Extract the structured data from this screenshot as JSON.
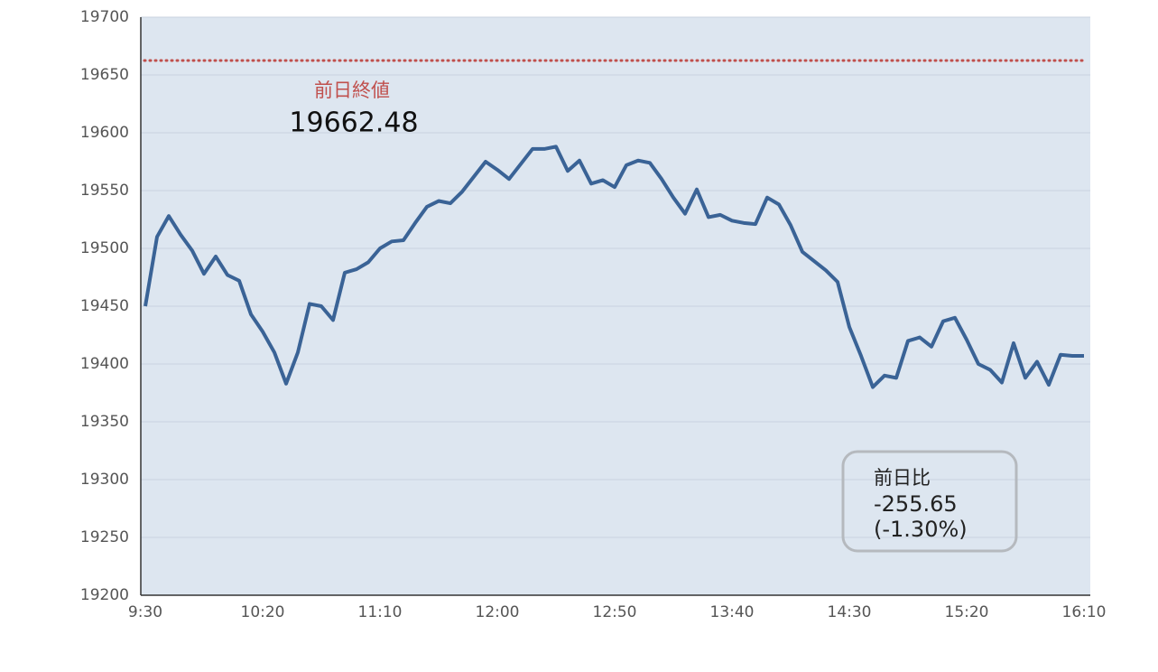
{
  "chart_data": {
    "type": "line",
    "categories": [
      "9:30",
      null,
      null,
      null,
      null,
      null,
      null,
      null,
      null,
      null,
      "10:20",
      null,
      null,
      null,
      null,
      null,
      null,
      null,
      null,
      null,
      "11:10",
      null,
      null,
      null,
      null,
      null,
      null,
      null,
      null,
      null,
      "12:00",
      null,
      null,
      null,
      null,
      null,
      null,
      null,
      null,
      null,
      "12:50",
      null,
      null,
      null,
      null,
      null,
      null,
      null,
      null,
      null,
      "13:40",
      null,
      null,
      null,
      null,
      null,
      null,
      null,
      null,
      null,
      "14:30",
      null,
      null,
      null,
      null,
      null,
      null,
      null,
      null,
      null,
      "15:20",
      null,
      null,
      null,
      null,
      null,
      null,
      null,
      null,
      null,
      "16:10"
    ],
    "series": [
      {
        "color": "#3a6396",
        "values": [
          19450,
          19510,
          19528,
          19512,
          19498,
          19478,
          19493,
          19477,
          19472,
          19443,
          19428,
          19410,
          19383,
          19410,
          19452,
          19450,
          19438,
          19479,
          19482,
          19488,
          19500,
          19506,
          19507,
          19522,
          19536,
          19541,
          19539,
          19549,
          19562,
          19575,
          19568,
          19560,
          19573,
          19586,
          19586,
          19588,
          19567,
          19576,
          19556,
          19559,
          19553,
          19572,
          19576,
          19574,
          19560,
          19544,
          19530,
          19551,
          19527,
          19529,
          19524,
          19522,
          19521,
          19544,
          19538,
          19520,
          19497,
          19489,
          19481,
          19471,
          19432,
          19407,
          19380,
          19390,
          19388,
          19420,
          19423,
          19415,
          19437,
          19440,
          19421,
          19400,
          19395,
          19384,
          19418,
          19388,
          19402,
          19382,
          19408,
          19407,
          19407
        ]
      }
    ],
    "ylim": [
      19200,
      19700
    ],
    "yticks": [
      19200,
      19250,
      19300,
      19350,
      19400,
      19450,
      19500,
      19550,
      19600,
      19650,
      19700
    ],
    "grid": true,
    "reference_line": {
      "label": "前日終値",
      "value": 19662.48,
      "color": "#c0504d"
    },
    "change_box": {
      "label": "前日比",
      "change": "-255.65",
      "percent": "(-1.30%)"
    }
  }
}
